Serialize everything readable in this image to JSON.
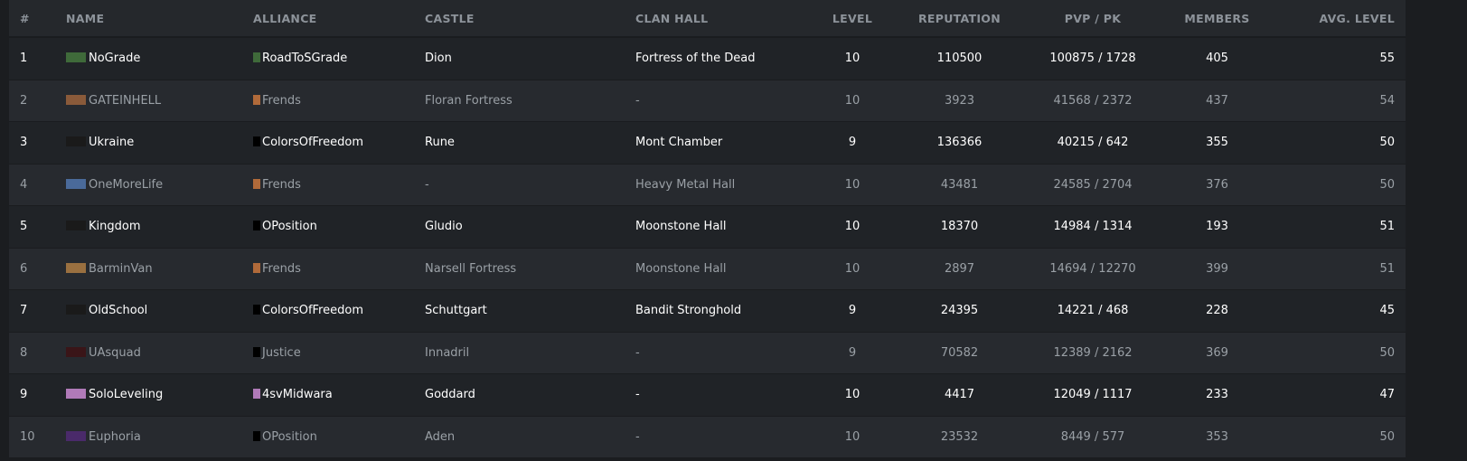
{
  "headers": {
    "rank": "#",
    "name": "NAME",
    "alliance": "ALLIANCE",
    "castle": "CASTLE",
    "clan_hall": "CLAN HALL",
    "level": "LEVEL",
    "reputation": "REPUTATION",
    "pvp_pk": "PVP / PK",
    "members": "MEMBERS",
    "avg_level": "AVG. LEVEL"
  },
  "rows": [
    {
      "rank": "1",
      "name": "NoGrade",
      "crest": "#3f6a3a",
      "alliance": "RoadToSGrade",
      "acrest": "#3f6a3a",
      "castle": "Dion",
      "clan_hall": "Fortress of the Dead",
      "level": "10",
      "reputation": "110500",
      "pvp_pk": "100875 / 1728",
      "members": "405",
      "avg_level": "55"
    },
    {
      "rank": "2",
      "name": "GATEINHELL",
      "crest": "#8a5a3a",
      "alliance": "Frends",
      "acrest": "#b06a3a",
      "castle": "Floran Fortress",
      "clan_hall": "-",
      "level": "10",
      "reputation": "3923",
      "pvp_pk": "41568 / 2372",
      "members": "437",
      "avg_level": "54"
    },
    {
      "rank": "3",
      "name": "Ukraine",
      "crest": "#1a1a1a",
      "alliance": "ColorsOfFreedom",
      "acrest": "#000000",
      "castle": "Rune",
      "clan_hall": "Mont Chamber",
      "level": "9",
      "reputation": "136366",
      "pvp_pk": "40215 / 642",
      "members": "355",
      "avg_level": "50"
    },
    {
      "rank": "4",
      "name": "OneMoreLife",
      "crest": "#4a6a9a",
      "alliance": "Frends",
      "acrest": "#b06a3a",
      "castle": "-",
      "clan_hall": "Heavy Metal Hall",
      "level": "10",
      "reputation": "43481",
      "pvp_pk": "24585 / 2704",
      "members": "376",
      "avg_level": "50"
    },
    {
      "rank": "5",
      "name": "Kingdom",
      "crest": "#1a1a1a",
      "alliance": "OPosition",
      "acrest": "#000000",
      "castle": "Gludio",
      "clan_hall": "Moonstone Hall",
      "level": "10",
      "reputation": "18370",
      "pvp_pk": "14984 / 1314",
      "members": "193",
      "avg_level": "51"
    },
    {
      "rank": "6",
      "name": "BarminVan",
      "crest": "#9a7040",
      "alliance": "Frends",
      "acrest": "#b06a3a",
      "castle": "Narsell Fortress",
      "clan_hall": "Moonstone Hall",
      "level": "10",
      "reputation": "2897",
      "pvp_pk": "14694 / 12270",
      "members": "399",
      "avg_level": "51"
    },
    {
      "rank": "7",
      "name": "OldSchool",
      "crest": "#1a1a1a",
      "alliance": "ColorsOfFreedom",
      "acrest": "#000000",
      "castle": "Schuttgart",
      "clan_hall": "Bandit Stronghold",
      "level": "9",
      "reputation": "24395",
      "pvp_pk": "14221 / 468",
      "members": "228",
      "avg_level": "45"
    },
    {
      "rank": "8",
      "name": "UAsquad",
      "crest": "#3a1518",
      "alliance": "Justice",
      "acrest": "#000000",
      "castle": "Innadril",
      "clan_hall": "-",
      "level": "9",
      "reputation": "70582",
      "pvp_pk": "12389 / 2162",
      "members": "369",
      "avg_level": "50"
    },
    {
      "rank": "9",
      "name": "SoloLeveling",
      "crest": "#b07ab8",
      "alliance": "4svMidwara",
      "acrest": "#b07ab8",
      "castle": "Goddard",
      "clan_hall": "-",
      "level": "10",
      "reputation": "4417",
      "pvp_pk": "12049 / 1117",
      "members": "233",
      "avg_level": "47"
    },
    {
      "rank": "10",
      "name": "Euphoria",
      "crest": "#4a2a6a",
      "alliance": "OPosition",
      "acrest": "#000000",
      "castle": "Aden",
      "clan_hall": "-",
      "level": "10",
      "reputation": "23532",
      "pvp_pk": "8449 / 577",
      "members": "353",
      "avg_level": "50"
    }
  ]
}
